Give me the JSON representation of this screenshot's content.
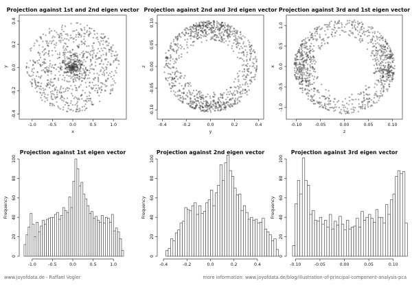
{
  "footer": {
    "left": "www.joyofdata.de - Raffael Vogler",
    "right": "more information: www.joyofdata.de/blog/illustration-of-principal-component-analysis-pca"
  },
  "colors": {
    "points": "#3a3a3a",
    "bars": "#ffffff",
    "bar_edge": "#333333",
    "axis": "#333333"
  },
  "chart_data": [
    {
      "type": "scatter",
      "title": "Projection against 1st and 2nd eigen vector",
      "xlabel": "x",
      "ylabel": "y",
      "xlim": [
        -1.25,
        1.25
      ],
      "ylim": [
        -0.42,
        0.44
      ],
      "xticks": [
        -1.0,
        -0.5,
        0.0,
        0.5,
        1.0
      ],
      "xtick_labels": [
        "-1.0",
        "-0.5",
        "0.0",
        "0.5",
        "1.0"
      ],
      "yticks": [
        -0.4,
        -0.2,
        0.0,
        0.2,
        0.4
      ],
      "ytick_labels": [
        "-0.4",
        "-0.2",
        "0.0",
        "0.2",
        "0.4"
      ],
      "n_points": 1000,
      "shape": "filled ellipse, dense core near (0,0)",
      "x_extent": [
        -1.15,
        1.15
      ],
      "y_extent": [
        -0.38,
        0.39
      ]
    },
    {
      "type": "scatter",
      "title": "Projection against 2nd and 3rd eigen vector",
      "xlabel": "y",
      "ylabel": "z",
      "xlim": [
        -0.42,
        0.42
      ],
      "ylim": [
        -0.115,
        0.115
      ],
      "xticks": [
        -0.4,
        -0.2,
        0.0,
        0.2,
        0.4
      ],
      "xtick_labels": [
        "-0.4",
        "-0.2",
        "0.0",
        "0.2",
        "0.4"
      ],
      "yticks": [
        -0.1,
        -0.05,
        0.0,
        0.05,
        0.1
      ],
      "ytick_labels": [
        "-0.10",
        "-0.05",
        "0.00",
        "0.05",
        "0.10"
      ],
      "n_points": 1000,
      "shape": "ellipse ring, dense at top and bottom",
      "x_extent": [
        -0.39,
        0.39
      ],
      "y_extent": [
        -0.105,
        0.105
      ]
    },
    {
      "type": "scatter",
      "title": "Projection against 3rd and 1st eigen vector",
      "xlabel": "z",
      "ylabel": "x",
      "xlim": [
        -0.115,
        0.115
      ],
      "ylim": [
        -1.22,
        1.22
      ],
      "xticks": [
        -0.1,
        -0.05,
        0.0,
        0.05,
        0.1
      ],
      "xtick_labels": [
        "-0.10",
        "-0.05",
        "0.00",
        "0.05",
        "0.10"
      ],
      "yticks": [
        -1.0,
        -0.5,
        0.0,
        0.5,
        1.0
      ],
      "ytick_labels": [
        "-1.0",
        "-0.5",
        "0.0",
        "0.5",
        "1.0"
      ],
      "n_points": 1000,
      "shape": "ellipse ring, dense at left and right",
      "x_extent": [
        -0.105,
        0.105
      ],
      "y_extent": [
        -1.15,
        1.15
      ]
    },
    {
      "type": "bar",
      "title": "Projection against 1st eigen vector",
      "xlabel": "",
      "ylabel": "Frequency",
      "xlim": [
        -1.25,
        1.25
      ],
      "ylim": [
        0,
        100
      ],
      "xticks": [
        -1.0,
        -0.5,
        0.0,
        0.5,
        1.0
      ],
      "xtick_labels": [
        "-1.0",
        "-0.5",
        "0.0",
        "0.5",
        "1.0"
      ],
      "yticks": [
        0,
        20,
        40,
        60,
        80,
        100
      ],
      "ytick_labels": [
        "0",
        "20",
        "40",
        "60",
        "80",
        "100"
      ],
      "bin_start": -1.2,
      "bin_width": 0.05,
      "values": [
        12,
        22,
        30,
        44,
        33,
        20,
        35,
        25,
        31,
        37,
        33,
        38,
        39,
        40,
        40,
        43,
        45,
        38,
        42,
        50,
        47,
        45,
        61,
        50,
        77,
        100,
        90,
        72,
        76,
        64,
        59,
        52,
        44,
        46,
        39,
        41,
        37,
        35,
        42,
        34,
        40,
        39,
        35,
        43,
        26,
        29,
        25,
        18,
        6
      ]
    },
    {
      "type": "bar",
      "title": "Projection against 2nd eigen vector",
      "xlabel": "",
      "ylabel": "Frequency",
      "xlim": [
        -0.43,
        0.43
      ],
      "ylim": [
        0,
        100
      ],
      "xticks": [
        -0.4,
        -0.2,
        0.0,
        0.2,
        0.4
      ],
      "xtick_labels": [
        "-0.4",
        "-0.2",
        "0.0",
        "0.2",
        "0.4"
      ],
      "yticks": [
        0,
        20,
        40,
        60,
        80,
        100
      ],
      "ytick_labels": [
        "0",
        "20",
        "40",
        "60",
        "80",
        "100"
      ],
      "bin_start": -0.38,
      "bin_width": 0.02,
      "values": [
        6,
        8,
        18,
        16,
        24,
        27,
        34,
        36,
        50,
        48,
        47,
        52,
        55,
        43,
        52,
        44,
        46,
        55,
        58,
        68,
        52,
        65,
        73,
        94,
        78,
        96,
        104,
        88,
        82,
        70,
        63,
        64,
        47,
        52,
        45,
        38,
        40,
        37,
        38,
        34,
        35,
        39,
        28,
        25,
        22,
        16,
        18,
        7
      ]
    },
    {
      "type": "bar",
      "title": "Projection against 3rd eigen vector",
      "xlabel": "",
      "ylabel": "Frequency",
      "xlim": [
        -0.113,
        0.113
      ],
      "ylim": [
        0,
        100
      ],
      "xticks": [
        -0.1,
        -0.05,
        0.0,
        0.05,
        0.1
      ],
      "xtick_labels": [
        "-0.10",
        "-0.05",
        "0.00",
        "0.05",
        "0.10"
      ],
      "yticks": [
        0,
        20,
        40,
        60,
        80,
        100
      ],
      "ytick_labels": [
        "0",
        "20",
        "40",
        "60",
        "80",
        "100"
      ],
      "bin_start": -0.106,
      "bin_width": 0.005,
      "values": [
        11,
        54,
        78,
        64,
        101,
        78,
        73,
        43,
        47,
        37,
        36,
        40,
        33,
        37,
        30,
        43,
        28,
        36,
        32,
        41,
        33,
        27,
        37,
        28,
        30,
        31,
        39,
        30,
        46,
        37,
        40,
        43,
        39,
        35,
        48,
        40,
        40,
        34,
        53,
        43,
        58,
        64,
        82,
        88,
        85,
        87,
        34
      ]
    }
  ]
}
